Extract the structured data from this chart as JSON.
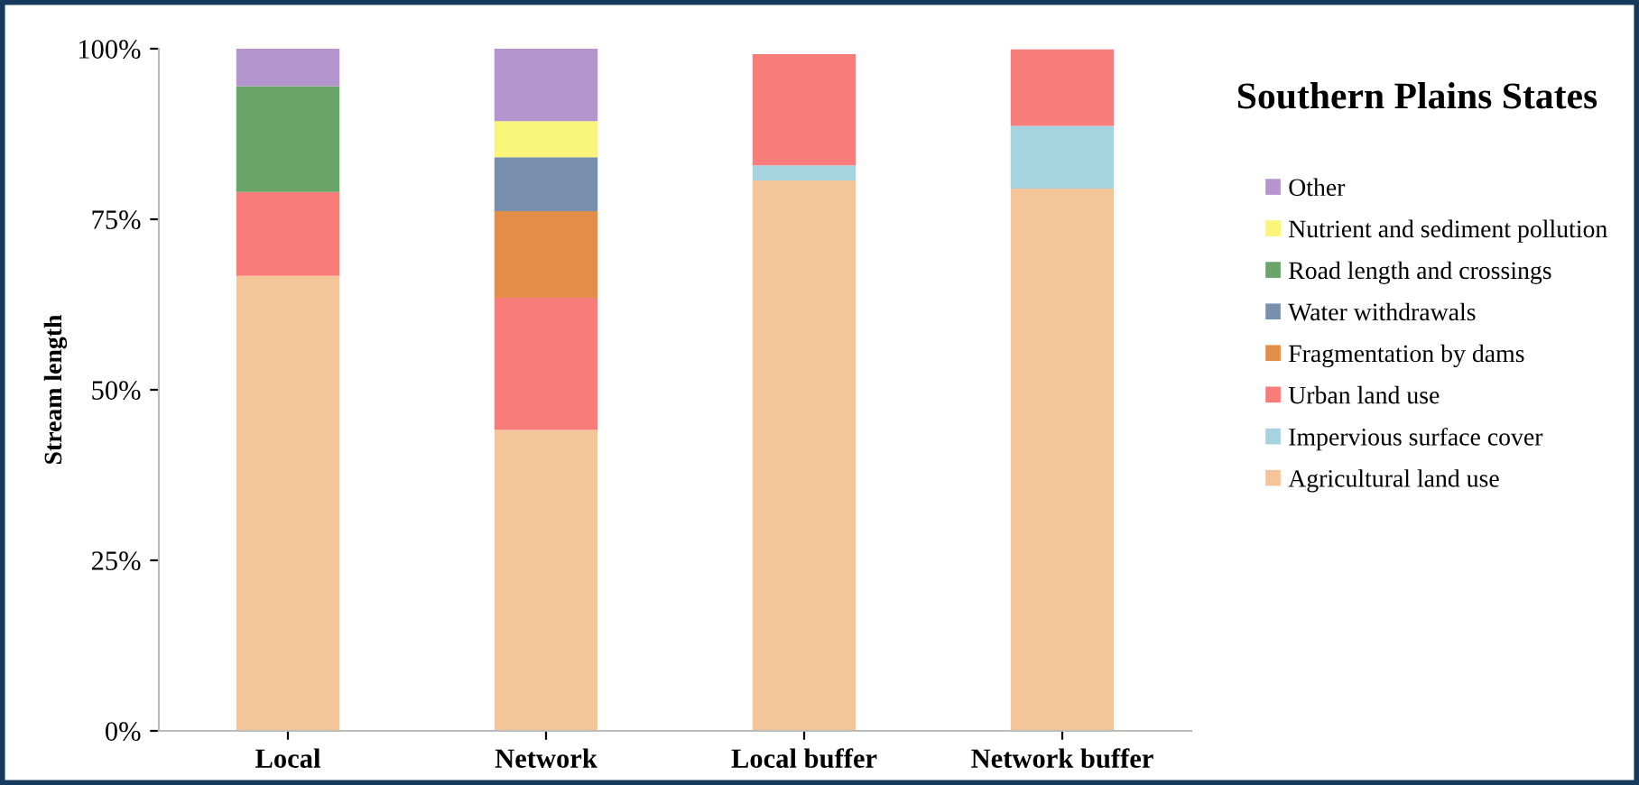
{
  "chart_data": {
    "type": "bar",
    "stacked": true,
    "title": "Southern Plains States",
    "ylabel": "Stream length",
    "categories": [
      "Local",
      "Network",
      "Local buffer",
      "Network buffer"
    ],
    "series": [
      {
        "name": "Agricultural land use",
        "color": "#f5c59a",
        "values": [
          66.7,
          44.1,
          80.7,
          79.5
        ]
      },
      {
        "name": "Impervious surface cover",
        "color": "#a6d3e0",
        "values": [
          0,
          0,
          2.2,
          9.2
        ]
      },
      {
        "name": "Urban land use",
        "color": "#f77c7a",
        "values": [
          12.3,
          19.4,
          16.3,
          11.2
        ]
      },
      {
        "name": "Fragmentation by dams",
        "color": "#e28d48",
        "values": [
          0,
          12.7,
          0,
          0
        ]
      },
      {
        "name": "Water withdrawals",
        "color": "#7890ad",
        "values": [
          0,
          7.9,
          0,
          0
        ]
      },
      {
        "name": "Road length and crossings",
        "color": "#69a468",
        "values": [
          15.5,
          0,
          0,
          0
        ]
      },
      {
        "name": "Nutrient and sediment pollution",
        "color": "#f8f57a",
        "values": [
          0,
          5.3,
          0,
          0
        ]
      },
      {
        "name": "Other",
        "color": "#b595cd",
        "values": [
          5.5,
          10.6,
          0,
          0
        ]
      }
    ],
    "ylim": [
      0,
      100
    ],
    "yticks": [
      {
        "value": 0,
        "label": "0%"
      },
      {
        "value": 25,
        "label": "25%"
      },
      {
        "value": 50,
        "label": "50%"
      },
      {
        "value": 75,
        "label": "75%"
      },
      {
        "value": 100,
        "label": "100%"
      }
    ],
    "grid": false,
    "legend": "right"
  }
}
